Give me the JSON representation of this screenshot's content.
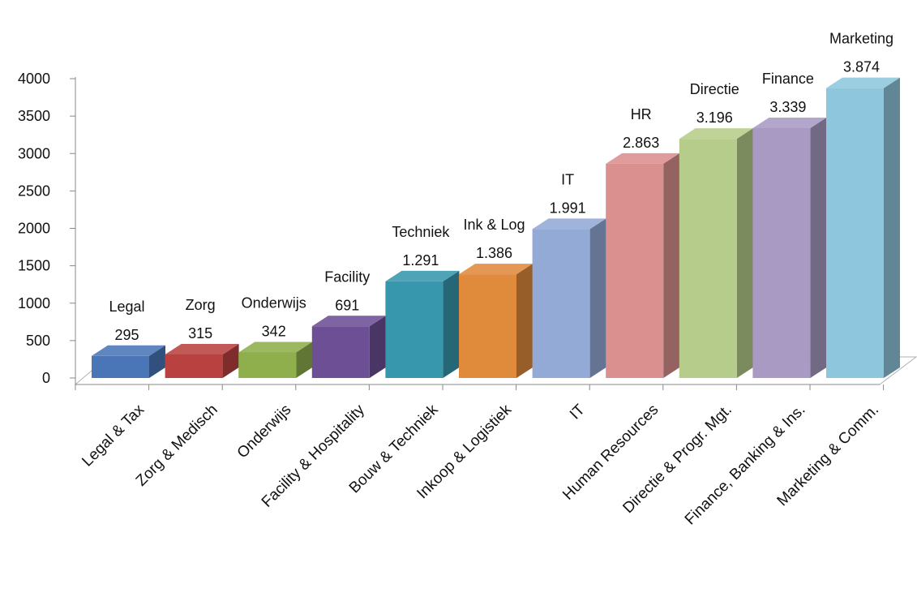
{
  "chart_data": {
    "type": "bar",
    "style": "3d-column",
    "categories": [
      "Legal & Tax",
      "Zorg & Medisch",
      "Onderwijs",
      "Facility & Hospitality",
      "Bouw & Techniek",
      "Inkoop & Logistiek",
      "IT",
      "Human Resources",
      "Directie & Progr. Mgt.",
      "Finance, Banking & Ins.",
      "Marketing & Comm."
    ],
    "values": [
      295,
      315,
      342,
      691,
      1291,
      1386,
      1991,
      2863,
      3196,
      3339,
      3874
    ],
    "bar_names": [
      "Legal",
      "Zorg",
      "Onderwijs",
      "Facility",
      "Techniek",
      "Ink & Log",
      "IT",
      "HR",
      "Directie",
      "Finance",
      "Marketing"
    ],
    "value_labels": [
      "295",
      "315",
      "342",
      "691",
      "1.291",
      "1.386",
      "1.991",
      "2.863",
      "3.196",
      "3.339",
      "3.874"
    ],
    "colors": [
      "#4a76b8",
      "#b94240",
      "#8fae4c",
      "#6c4f95",
      "#3797ad",
      "#e08a3c",
      "#93aad6",
      "#d9908e",
      "#b6cc8a",
      "#a89ac3",
      "#8ec7dd"
    ],
    "ylim": [
      0,
      4000
    ],
    "yticks": [
      0,
      500,
      1000,
      1500,
      2000,
      2500,
      3000,
      3500,
      4000
    ],
    "title": "",
    "xlabel": "",
    "ylabel": "",
    "grid": false,
    "legend": "none"
  }
}
